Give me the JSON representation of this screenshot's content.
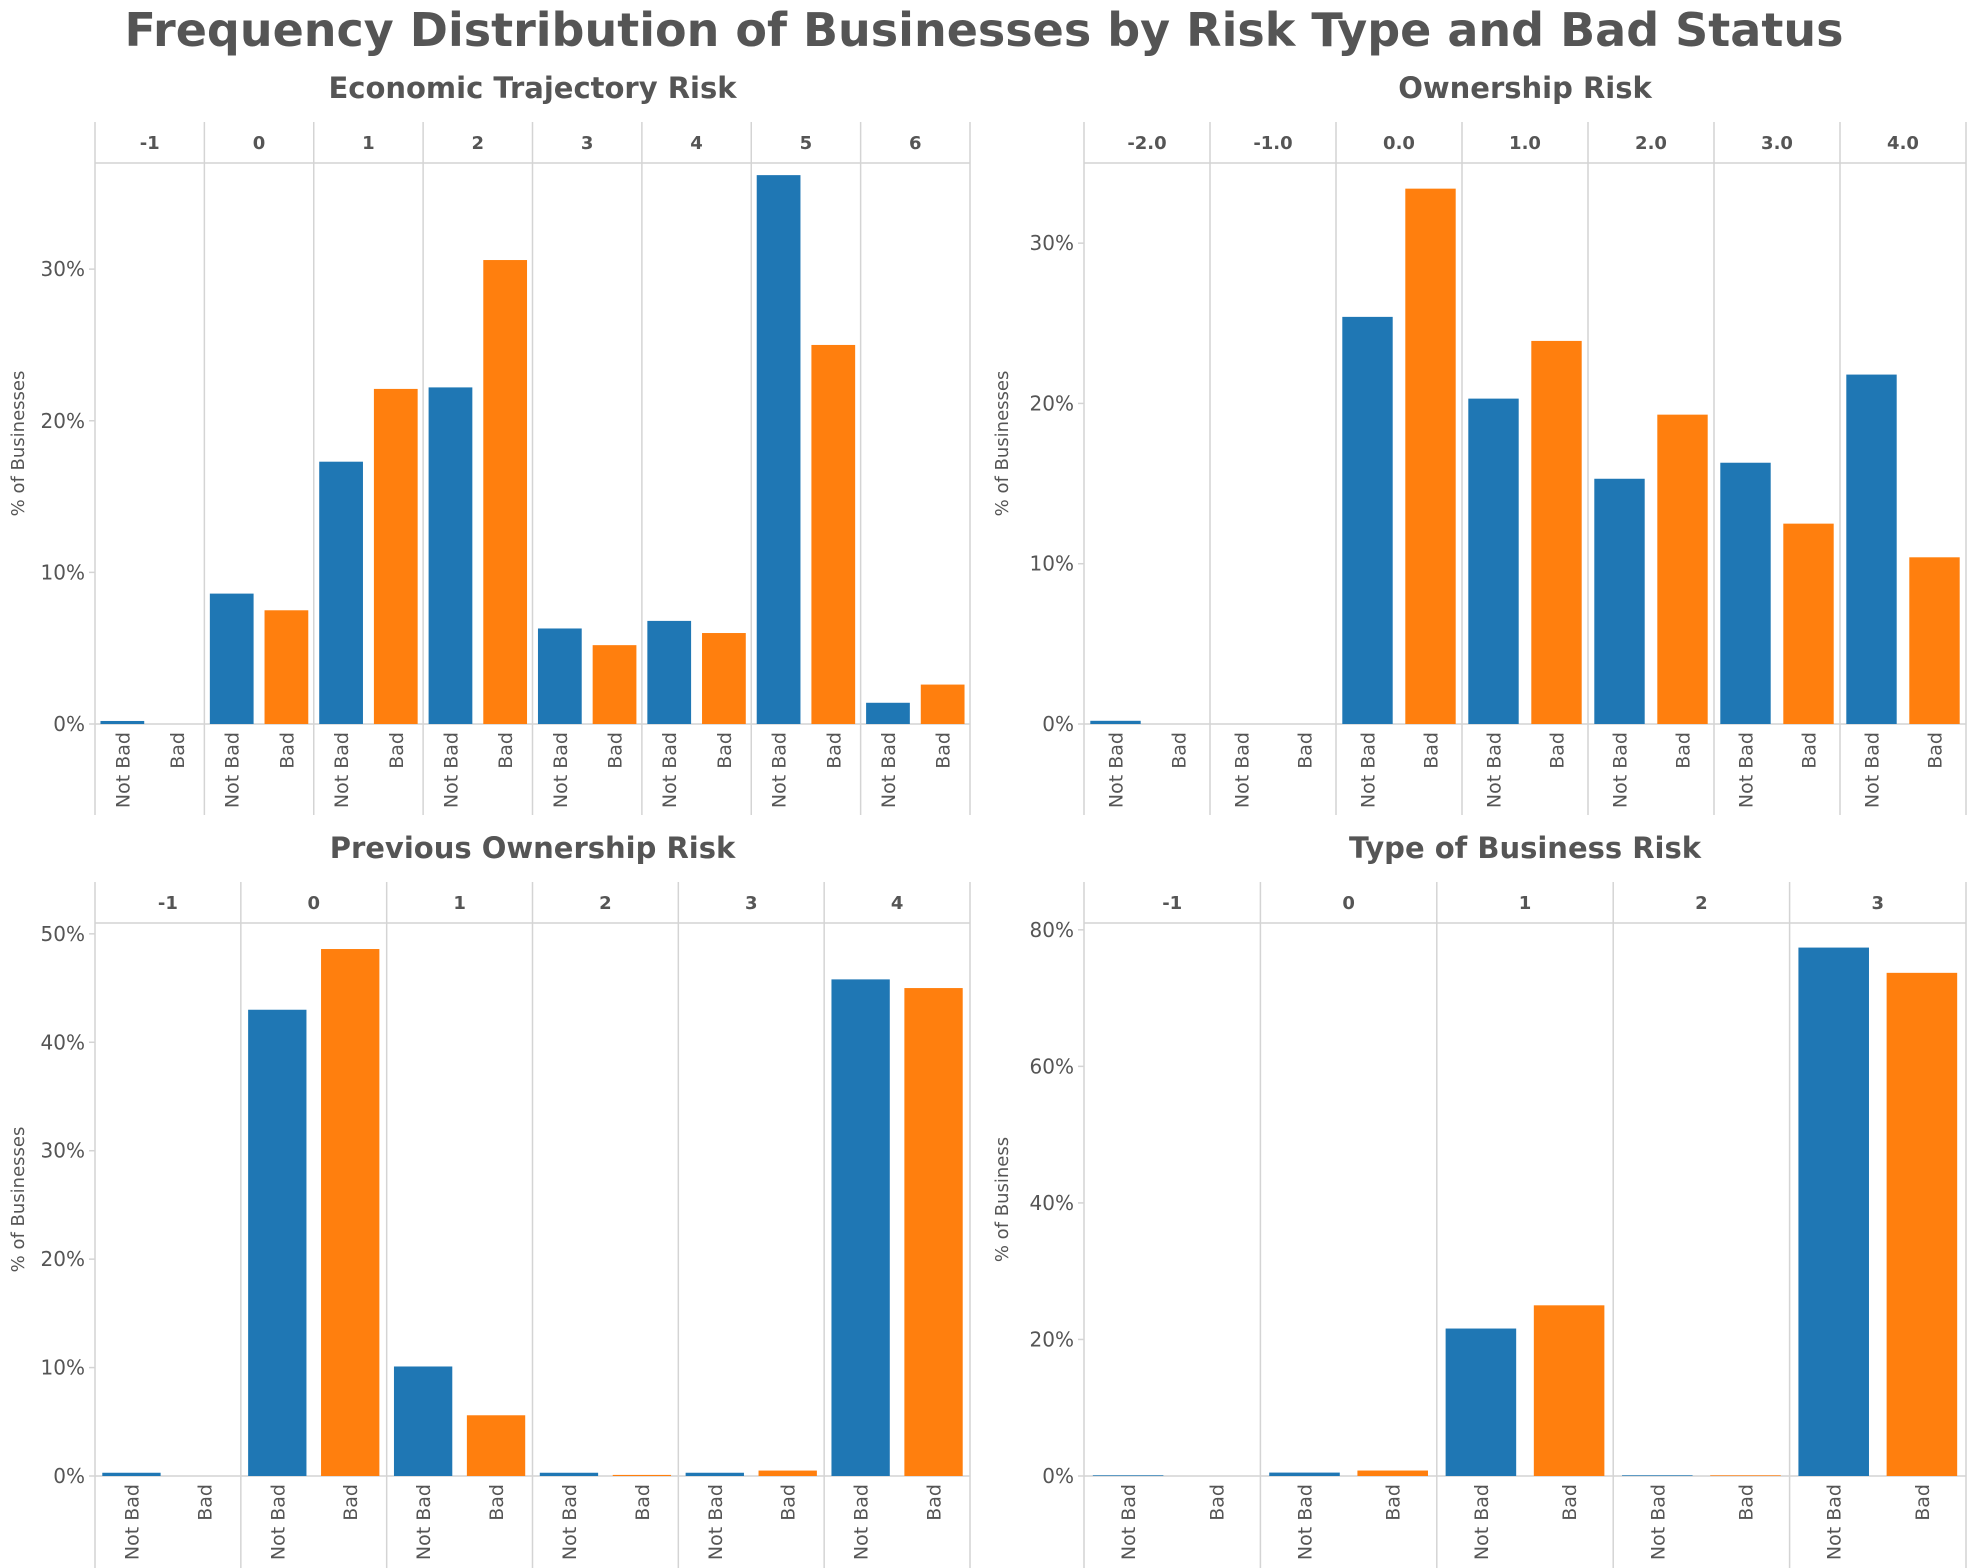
{
  "title": "Frequency Distribution of Businesses by Risk Type and Bad Status",
  "colors": {
    "not_bad": "#1f77b4",
    "bad": "#ff7f0e",
    "grid": "#d4d4d4",
    "text": "#555555"
  },
  "chart_data": [
    {
      "type": "bar",
      "title": "Economic Trajectory Risk",
      "ylabel": "% of Businesses",
      "ylim": [
        0,
        37
      ],
      "yticks": [
        "0%",
        "10%",
        "20%",
        "30%"
      ],
      "yticks_values": [
        0,
        10,
        20,
        30
      ],
      "groups": [
        "-1",
        "0",
        "1",
        "2",
        "3",
        "4",
        "5",
        "6"
      ],
      "sub_categories": [
        "Not Bad",
        "Bad"
      ],
      "series": [
        {
          "name": "Not Bad",
          "values": [
            0.2,
            8.6,
            17.3,
            22.2,
            6.3,
            6.8,
            36.2,
            1.4
          ]
        },
        {
          "name": "Bad",
          "values": [
            0,
            7.5,
            22.1,
            30.6,
            5.2,
            6.0,
            25.0,
            2.6
          ]
        }
      ]
    },
    {
      "type": "bar",
      "title": "Ownership Risk",
      "ylabel": "% of Businesses",
      "ylim": [
        0,
        35
      ],
      "yticks": [
        "0%",
        "10%",
        "20%",
        "30%"
      ],
      "yticks_values": [
        0,
        10,
        20,
        30
      ],
      "groups": [
        "-2.0",
        "-1.0",
        "0.0",
        "1.0",
        "2.0",
        "3.0",
        "4.0"
      ],
      "sub_categories": [
        "Not Bad",
        "Bad"
      ],
      "series": [
        {
          "name": "Not Bad",
          "values": [
            0.2,
            0,
            25.4,
            20.3,
            15.3,
            16.3,
            21.8
          ]
        },
        {
          "name": "Bad",
          "values": [
            0,
            0,
            33.4,
            23.9,
            19.3,
            12.5,
            10.4
          ]
        }
      ]
    },
    {
      "type": "bar",
      "title": "Previous Ownership Risk",
      "ylabel": "% of Businesses",
      "ylim": [
        0,
        51
      ],
      "yticks": [
        "0%",
        "10%",
        "20%",
        "30%",
        "40%",
        "50%"
      ],
      "yticks_values": [
        0,
        10,
        20,
        30,
        40,
        50
      ],
      "groups": [
        "-1",
        "0",
        "1",
        "2",
        "3",
        "4"
      ],
      "sub_categories": [
        "Not Bad",
        "Bad"
      ],
      "series": [
        {
          "name": "Not Bad",
          "values": [
            0.3,
            43.0,
            10.1,
            0.3,
            0.3,
            45.8
          ]
        },
        {
          "name": "Bad",
          "values": [
            0,
            48.6,
            5.6,
            0.1,
            0.5,
            45.0
          ]
        }
      ]
    },
    {
      "type": "bar",
      "title": "Type of Business Risk",
      "ylabel": "% of Business",
      "ylim": [
        0,
        81
      ],
      "yticks": [
        "0%",
        "20%",
        "40%",
        "60%",
        "80%"
      ],
      "yticks_values": [
        0,
        20,
        40,
        60,
        80
      ],
      "groups": [
        "-1",
        "0",
        "1",
        "2",
        "3"
      ],
      "sub_categories": [
        "Not Bad",
        "Bad"
      ],
      "series": [
        {
          "name": "Not Bad",
          "values": [
            0.1,
            0.5,
            21.6,
            0.1,
            77.4
          ]
        },
        {
          "name": "Bad",
          "values": [
            0,
            0.8,
            25.0,
            0.1,
            73.7
          ]
        }
      ]
    }
  ]
}
